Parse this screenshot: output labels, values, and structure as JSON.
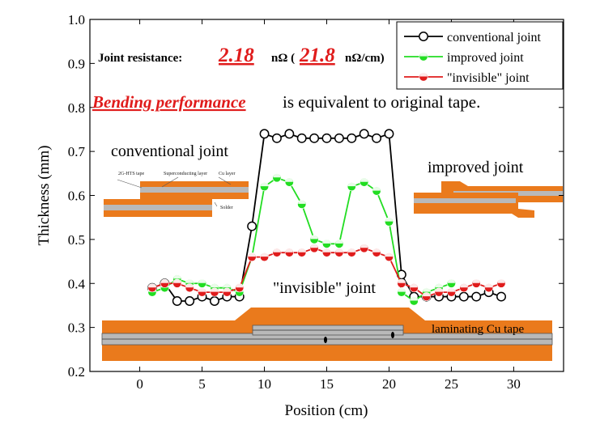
{
  "chart_data": {
    "type": "line",
    "xlabel": "Position (cm)",
    "ylabel": "Thickness (mm)",
    "xlim": [
      -4,
      34
    ],
    "ylim": [
      0.2,
      1.0
    ],
    "x_ticks": [
      0,
      5,
      10,
      15,
      20,
      25,
      30
    ],
    "y_ticks": [
      0.2,
      0.3,
      0.4,
      0.5,
      0.6,
      0.7,
      0.8,
      0.9,
      1.0
    ],
    "x_tick_labels": [
      "0",
      "5",
      "10",
      "15",
      "20",
      "25",
      "30"
    ],
    "y_tick_labels": [
      "0.2",
      "0.3",
      "0.4",
      "0.5",
      "0.6",
      "0.7",
      "0.8",
      "0.9",
      "1.0"
    ],
    "legend_position": "top-right",
    "series": [
      {
        "name": "conventional joint",
        "color": "#000000",
        "marker": "open-circle",
        "x": [
          1,
          2,
          3,
          4,
          5,
          6,
          7,
          8,
          9,
          10,
          11,
          12,
          13,
          14,
          15,
          16,
          17,
          18,
          19,
          20,
          21,
          22,
          23,
          24,
          25,
          26,
          27,
          28,
          29
        ],
        "values": [
          0.39,
          0.4,
          0.36,
          0.36,
          0.37,
          0.36,
          0.37,
          0.37,
          0.53,
          0.74,
          0.73,
          0.74,
          0.73,
          0.73,
          0.73,
          0.73,
          0.73,
          0.74,
          0.73,
          0.74,
          0.42,
          0.37,
          0.37,
          0.37,
          0.37,
          0.37,
          0.37,
          0.38,
          0.37
        ]
      },
      {
        "name": "improved joint",
        "color": "#22dd22",
        "marker": "half-filled-circle",
        "x": [
          1,
          2,
          3,
          4,
          5,
          6,
          7,
          8,
          9,
          10,
          11,
          12,
          13,
          14,
          15,
          16,
          17,
          18,
          19,
          20,
          21,
          22,
          23,
          24,
          25
        ],
        "values": [
          0.38,
          0.39,
          0.41,
          0.4,
          0.4,
          0.39,
          0.39,
          0.38,
          0.46,
          0.62,
          0.64,
          0.63,
          0.58,
          0.5,
          0.49,
          0.49,
          0.62,
          0.63,
          0.61,
          0.54,
          0.38,
          0.36,
          0.38,
          0.39,
          0.4
        ]
      },
      {
        "name": "\"invisible\" joint",
        "color": "#e01c1c",
        "marker": "half-filled-circle",
        "x": [
          1,
          2,
          3,
          4,
          5,
          6,
          7,
          8,
          9,
          10,
          11,
          12,
          13,
          14,
          15,
          16,
          17,
          18,
          19,
          20,
          21,
          22,
          23,
          24,
          25,
          26,
          27,
          28,
          29
        ],
        "values": [
          0.39,
          0.4,
          0.4,
          0.39,
          0.38,
          0.38,
          0.38,
          0.39,
          0.46,
          0.46,
          0.47,
          0.47,
          0.47,
          0.48,
          0.47,
          0.47,
          0.47,
          0.48,
          0.47,
          0.46,
          0.4,
          0.39,
          0.37,
          0.38,
          0.38,
          0.39,
          0.4,
          0.39,
          0.4
        ]
      }
    ],
    "annotations": {
      "resistance_label": "Joint resistance:",
      "resistance_value": "2.18",
      "resistance_unit": "nΩ (",
      "resistance_per_cm": "21.8",
      "resistance_per_cm_unit": "nΩ/cm)",
      "bending_emphasis": "Bending performance ",
      "bending_rest": "is equivalent to original tape.",
      "conventional_joint": "conventional joint",
      "improved_joint": "improved joint",
      "invisible_joint": "\"invisible\" joint",
      "laminating": "laminating Cu tape",
      "small_label_tape": "2G-HTS tape",
      "small_label_layer": "Superconducting layer",
      "small_label_cu": "Cu layer",
      "small_label_solder": "Solder"
    },
    "colors": {
      "copper": "#ea7a1c",
      "highlight_red": "#e01c1c",
      "steel": "#b9b9b9"
    }
  }
}
